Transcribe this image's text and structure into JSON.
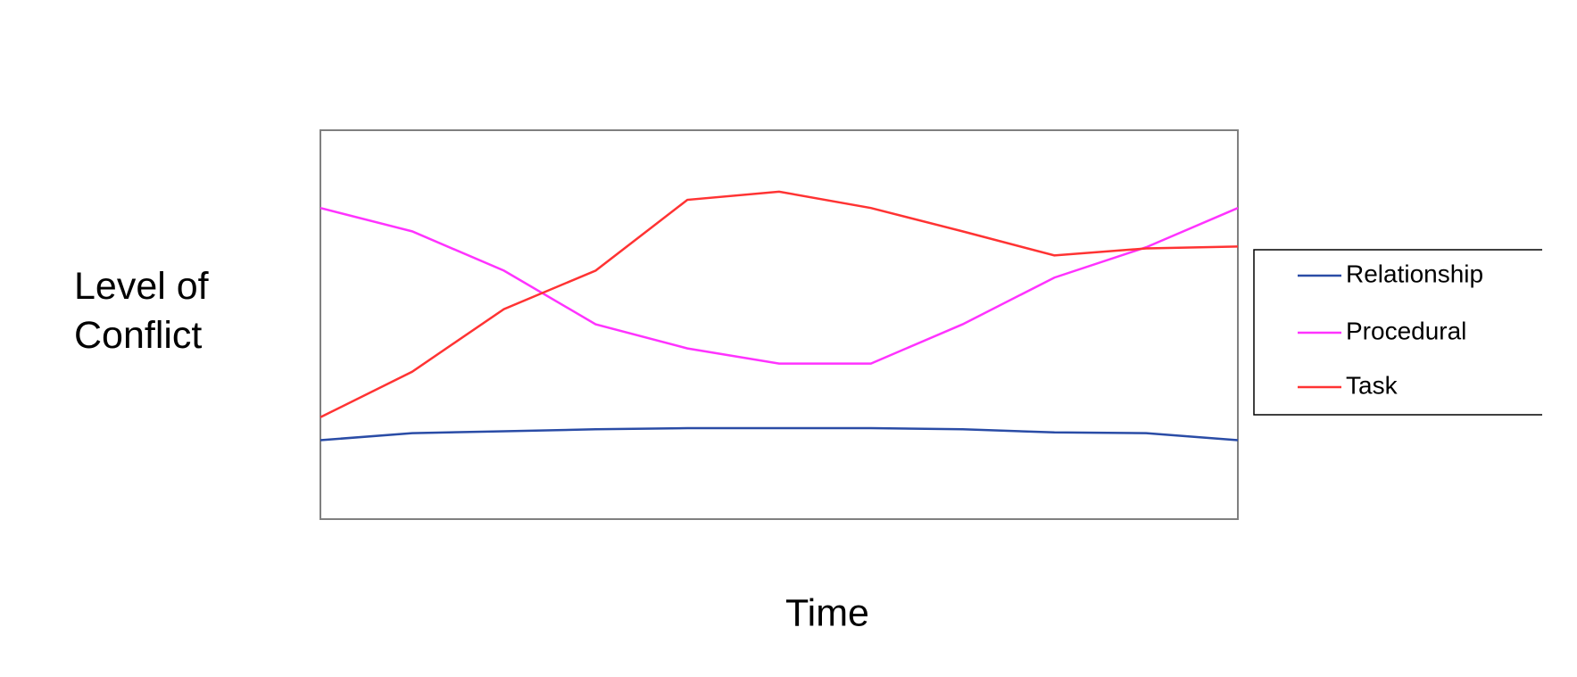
{
  "chart_data": {
    "type": "line",
    "y_label": "Level of Conflict",
    "x_label": "Time",
    "categories": [
      null,
      null,
      null,
      null,
      null,
      null,
      null,
      null,
      null,
      null,
      null
    ],
    "series": [
      {
        "name": "Relationship",
        "color": "#2a4ca6",
        "values": [
          20.3,
          22.1,
          22.6,
          23.1,
          23.4,
          23.4,
          23.4,
          23.1,
          22.3,
          22.1,
          20.3
        ]
      },
      {
        "name": "Procedural",
        "color": "#ff33ff",
        "values": [
          80,
          74,
          63.9,
          50.1,
          43.9,
          40,
          40,
          50.1,
          62.1,
          69.9,
          80
        ]
      },
      {
        "name": "Task",
        "color": "#ff3333",
        "values": [
          26.2,
          37.9,
          54,
          63.9,
          82.1,
          84.2,
          80,
          74,
          67.8,
          69.6,
          70.1
        ]
      }
    ],
    "ylim": [
      0,
      100
    ],
    "legend": "right"
  }
}
